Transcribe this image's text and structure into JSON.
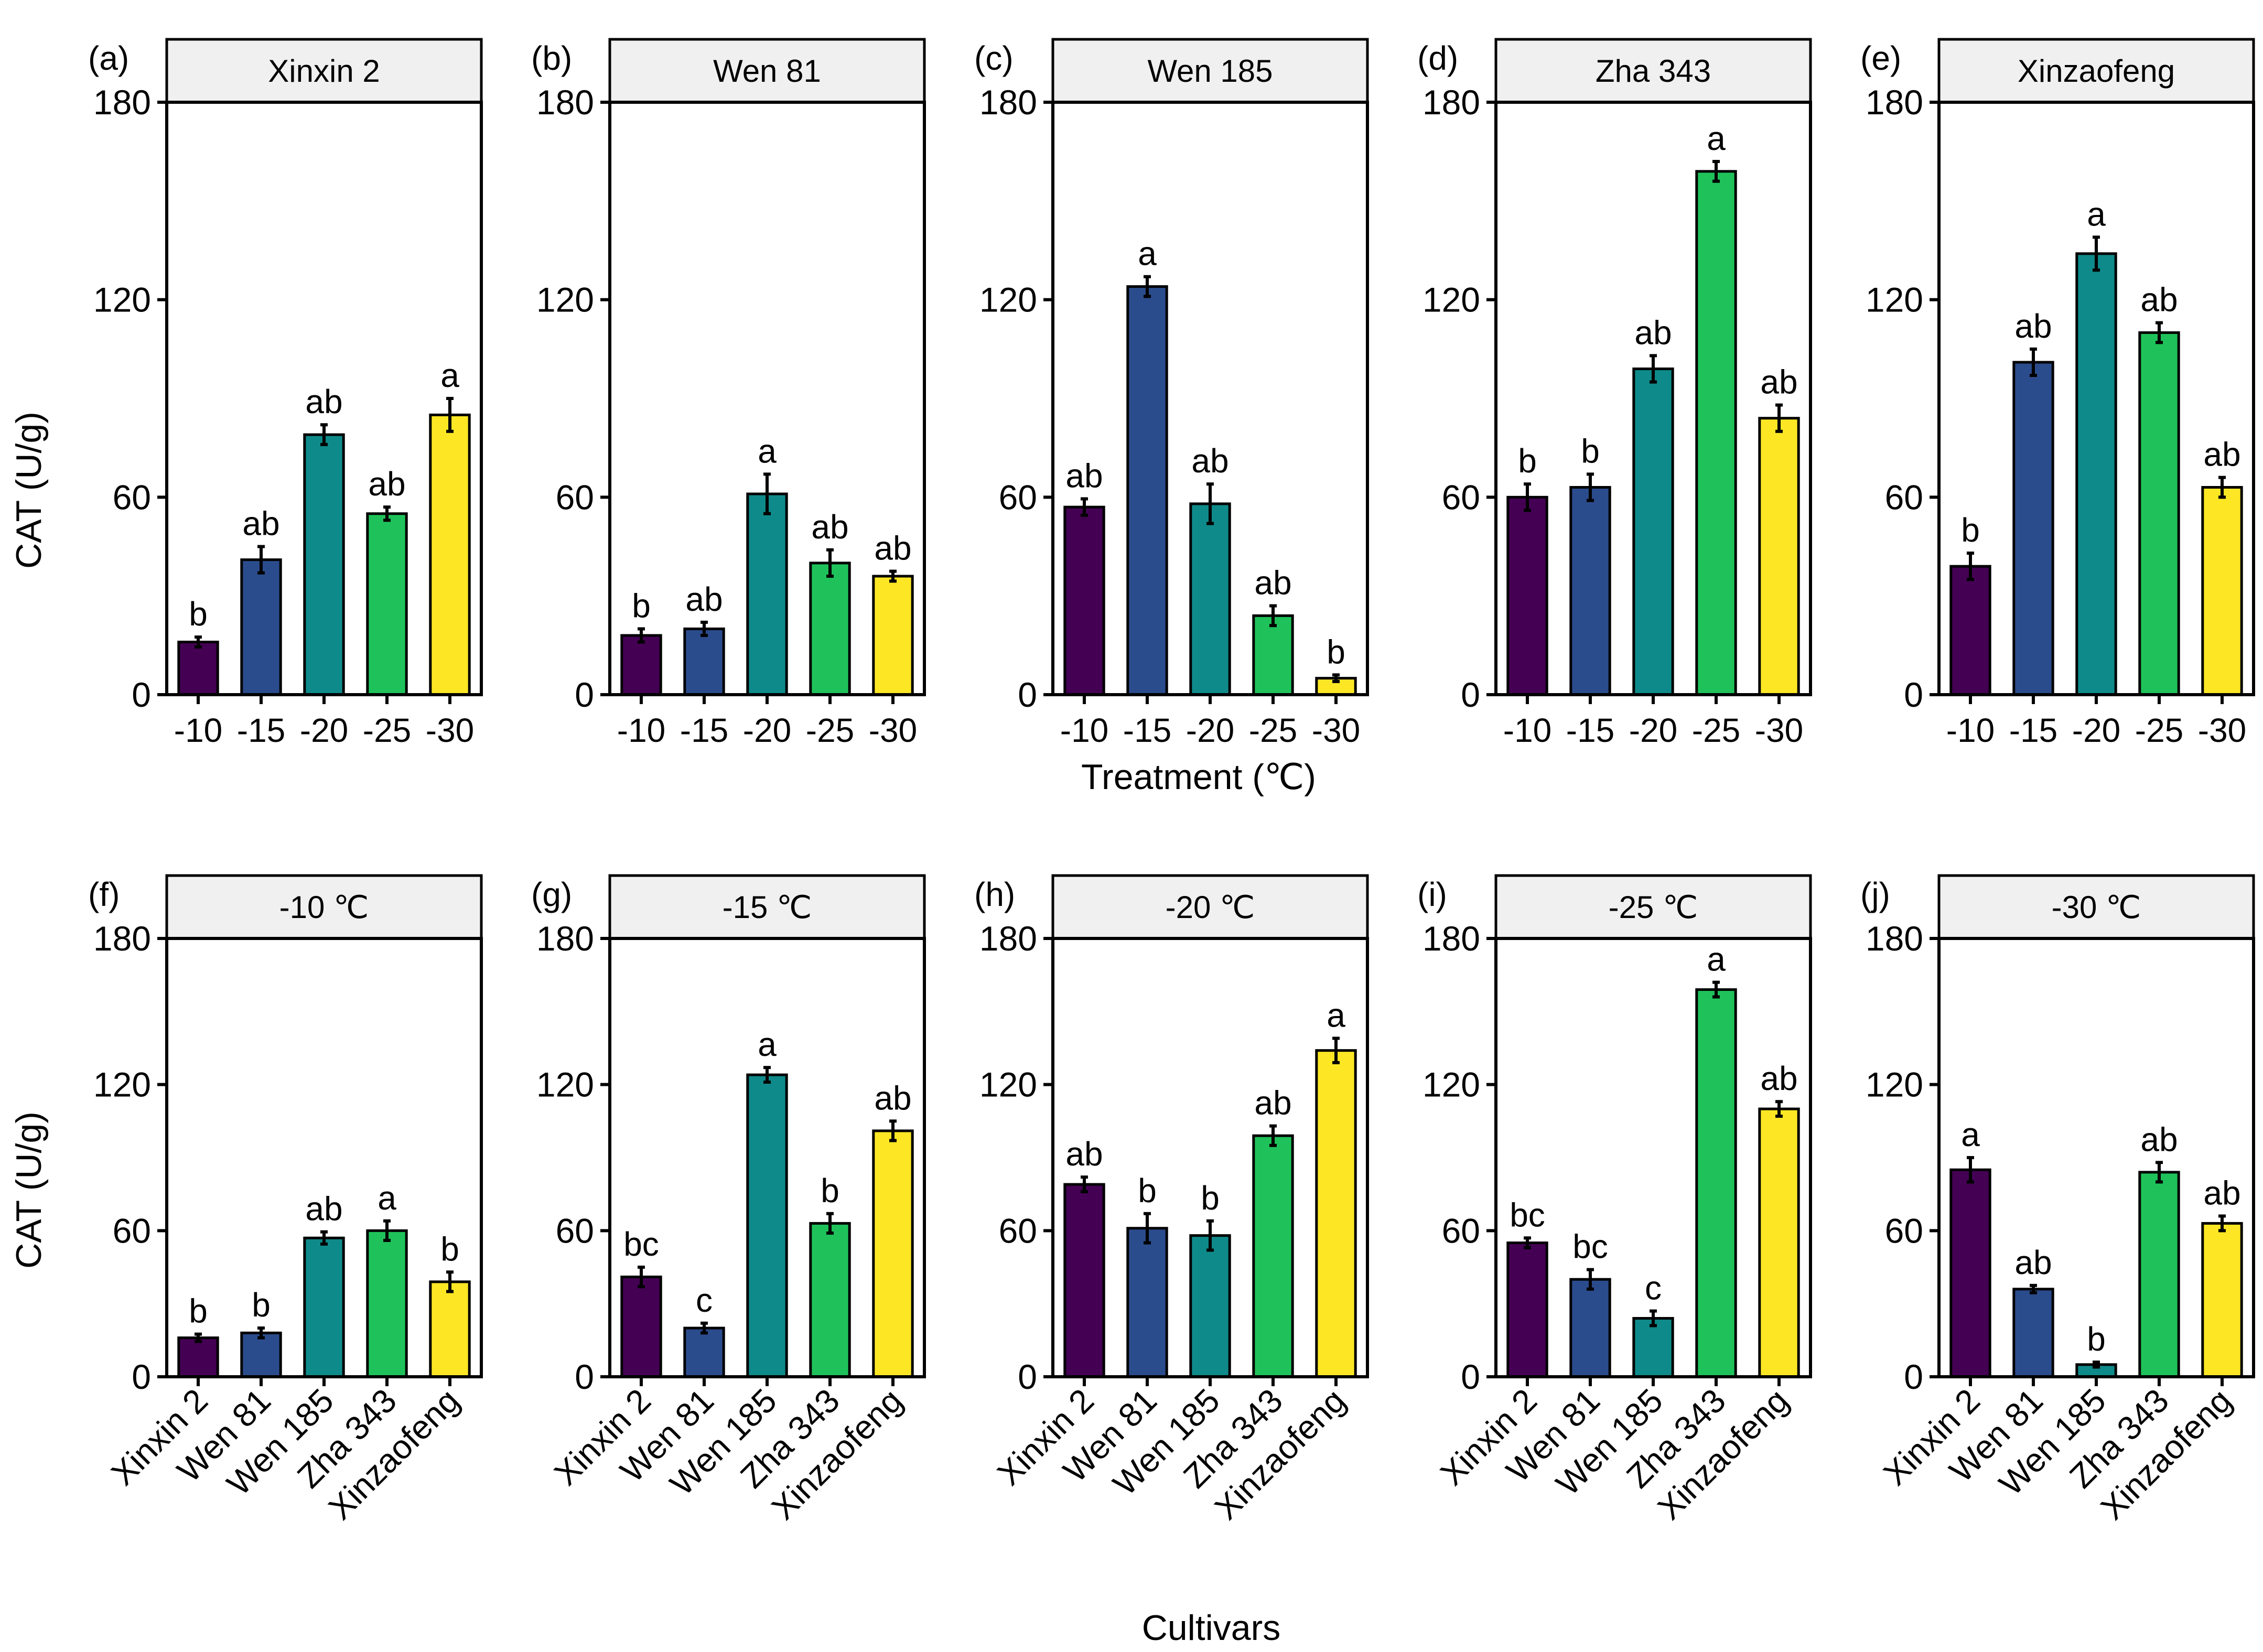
{
  "figure": {
    "y_label": "CAT (U/g)",
    "x_label_top": "Treatment (℃)",
    "x_label_bottom": "Cultivars"
  },
  "palette": {
    "c1": "#440154",
    "c2": "#2B4C8C",
    "c3": "#0F8A8A",
    "c4": "#1FC25A",
    "c5": "#FDE725",
    "strip_fill": "#F0F0F0"
  },
  "chart_data": [
    {
      "type": "bar",
      "panel": "(a)",
      "title": "Xinxin 2",
      "categories": [
        "-10",
        "-15",
        "-20",
        "-25",
        "-30"
      ],
      "values": [
        16,
        41,
        79,
        55,
        85
      ],
      "errors": [
        1.5,
        4,
        3,
        2,
        5
      ],
      "labels": [
        "b",
        "ab",
        "ab",
        "ab",
        "a"
      ],
      "xlabel": "",
      "ylabel": "CAT (U/g)",
      "ylim": [
        0,
        180
      ],
      "yticks": [
        0,
        60,
        120,
        180
      ]
    },
    {
      "type": "bar",
      "panel": "(b)",
      "title": "Wen 81",
      "categories": [
        "-10",
        "-15",
        "-20",
        "-25",
        "-30"
      ],
      "values": [
        18,
        20,
        61,
        40,
        36
      ],
      "errors": [
        2,
        2,
        6,
        4,
        1.5
      ],
      "labels": [
        "b",
        "ab",
        "a",
        "ab",
        "ab"
      ],
      "xlabel": "",
      "ylabel": "",
      "ylim": [
        0,
        180
      ],
      "yticks": [
        0,
        60,
        120,
        180
      ]
    },
    {
      "type": "bar",
      "panel": "(c)",
      "title": "Wen 185",
      "categories": [
        "-10",
        "-15",
        "-20",
        "-25",
        "-30"
      ],
      "values": [
        57,
        124,
        58,
        24,
        5
      ],
      "errors": [
        2.5,
        3,
        6,
        3,
        1
      ],
      "labels": [
        "ab",
        "a",
        "ab",
        "ab",
        "b"
      ],
      "xlabel": "Treatment (℃)",
      "ylabel": "",
      "ylim": [
        0,
        180
      ],
      "yticks": [
        0,
        60,
        120,
        180
      ]
    },
    {
      "type": "bar",
      "panel": "(d)",
      "title": "Zha 343",
      "categories": [
        "-10",
        "-15",
        "-20",
        "-25",
        "-30"
      ],
      "values": [
        60,
        63,
        99,
        159,
        84
      ],
      "errors": [
        4,
        4,
        4,
        3,
        4
      ],
      "labels": [
        "b",
        "b",
        "ab",
        "a",
        "ab"
      ],
      "xlabel": "",
      "ylabel": "",
      "ylim": [
        0,
        180
      ],
      "yticks": [
        0,
        60,
        120,
        180
      ]
    },
    {
      "type": "bar",
      "panel": "(e)",
      "title": "Xinzaofeng",
      "categories": [
        "-10",
        "-15",
        "-20",
        "-25",
        "-30"
      ],
      "values": [
        39,
        101,
        134,
        110,
        63
      ],
      "errors": [
        4,
        4,
        5,
        3,
        3
      ],
      "labels": [
        "b",
        "ab",
        "a",
        "ab",
        "ab"
      ],
      "xlabel": "",
      "ylabel": "",
      "ylim": [
        0,
        180
      ],
      "yticks": [
        0,
        60,
        120,
        180
      ]
    },
    {
      "type": "bar",
      "panel": "(f)",
      "title": "-10 ℃",
      "categories": [
        "Xinxin 2",
        "Wen 81",
        "Wen 185",
        "Zha 343",
        "Xinzaofeng"
      ],
      "values": [
        16,
        18,
        57,
        60,
        39
      ],
      "errors": [
        1.5,
        2,
        2.5,
        4,
        4
      ],
      "labels": [
        "b",
        "b",
        "ab",
        "a",
        "b"
      ],
      "xlabel": "",
      "ylabel": "CAT (U/g)",
      "ylim": [
        0,
        180
      ],
      "yticks": [
        0,
        60,
        120,
        180
      ]
    },
    {
      "type": "bar",
      "panel": "(g)",
      "title": "-15 ℃",
      "categories": [
        "Xinxin 2",
        "Wen 81",
        "Wen 185",
        "Zha 343",
        "Xinzaofeng"
      ],
      "values": [
        41,
        20,
        124,
        63,
        101
      ],
      "errors": [
        4,
        2,
        3,
        4,
        4
      ],
      "labels": [
        "bc",
        "c",
        "a",
        "b",
        "ab"
      ],
      "xlabel": "",
      "ylabel": "",
      "ylim": [
        0,
        180
      ],
      "yticks": [
        0,
        60,
        120,
        180
      ]
    },
    {
      "type": "bar",
      "panel": "(h)",
      "title": "-20 ℃",
      "categories": [
        "Xinxin 2",
        "Wen 81",
        "Wen 185",
        "Zha 343",
        "Xinzaofeng"
      ],
      "values": [
        79,
        61,
        58,
        99,
        134
      ],
      "errors": [
        3,
        6,
        6,
        4,
        5
      ],
      "labels": [
        "ab",
        "b",
        "b",
        "ab",
        "a"
      ],
      "xlabel": "",
      "ylabel": "",
      "ylim": [
        0,
        180
      ],
      "yticks": [
        0,
        60,
        120,
        180
      ]
    },
    {
      "type": "bar",
      "panel": "(i)",
      "title": "-25 ℃",
      "categories": [
        "Xinxin 2",
        "Wen 81",
        "Wen 185",
        "Zha 343",
        "Xinzaofeng"
      ],
      "values": [
        55,
        40,
        24,
        159,
        110
      ],
      "errors": [
        2,
        4,
        3,
        3,
        3
      ],
      "labels": [
        "bc",
        "bc",
        "c",
        "a",
        "ab"
      ],
      "xlabel": "",
      "ylabel": "",
      "ylim": [
        0,
        180
      ],
      "yticks": [
        0,
        60,
        120,
        180
      ]
    },
    {
      "type": "bar",
      "panel": "(j)",
      "title": "-30 ℃",
      "categories": [
        "Xinxin 2",
        "Wen 81",
        "Wen 185",
        "Zha 343",
        "Xinzaofeng"
      ],
      "values": [
        85,
        36,
        5,
        84,
        63
      ],
      "errors": [
        5,
        1.5,
        1,
        4,
        3
      ],
      "labels": [
        "a",
        "ab",
        "b",
        "ab",
        "ab"
      ],
      "xlabel": "",
      "ylabel": "",
      "ylim": [
        0,
        180
      ],
      "yticks": [
        0,
        60,
        120,
        180
      ]
    }
  ]
}
